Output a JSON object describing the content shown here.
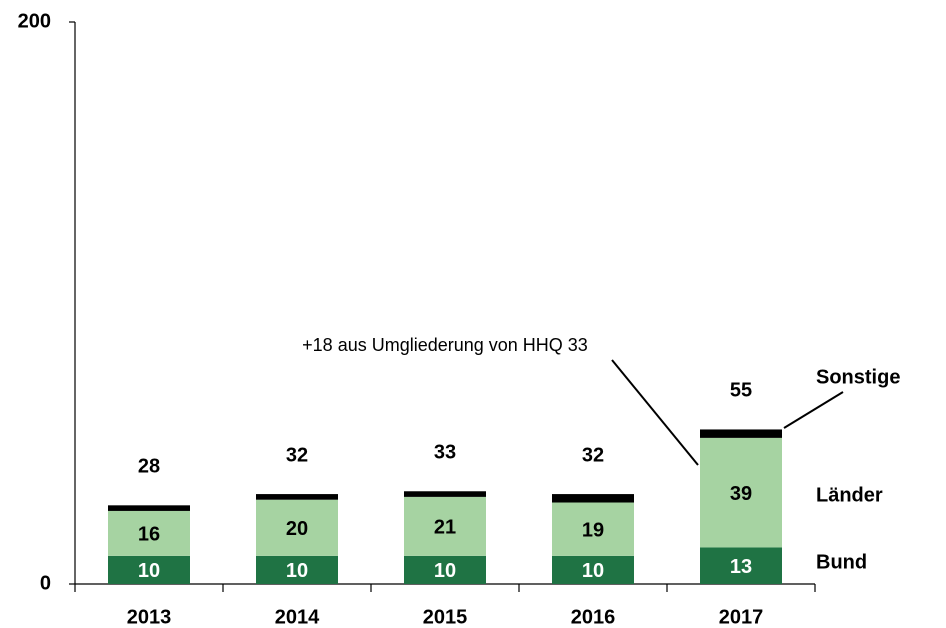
{
  "chart_data": {
    "type": "stacked_bar",
    "categories": [
      "2013",
      "2014",
      "2015",
      "2016",
      "2017"
    ],
    "series": [
      {
        "name": "Bund",
        "color": "#1f7344",
        "values": [
          10,
          10,
          10,
          10,
          13
        ]
      },
      {
        "name": "Länder",
        "color": "#a6d3a2",
        "values": [
          16,
          20,
          21,
          19,
          39
        ]
      },
      {
        "name": "Sonstige",
        "color": "#000000",
        "values": [
          2,
          2,
          2,
          3,
          3
        ]
      }
    ],
    "totals": [
      28,
      32,
      33,
      32,
      55
    ],
    "annotation": "+18 aus Umgliederung von HHQ 33",
    "ylim": [
      0,
      200
    ],
    "yticks": [
      0,
      200
    ]
  }
}
